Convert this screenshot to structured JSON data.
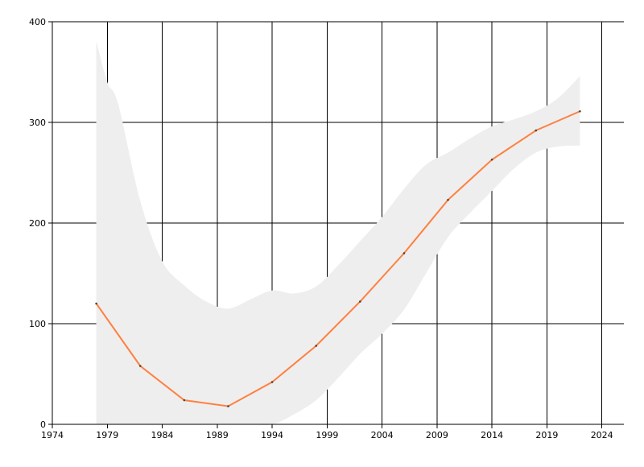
{
  "chart_data": {
    "type": "line",
    "title": "",
    "xlabel": "",
    "ylabel": "",
    "xlim": [
      1974,
      2026
    ],
    "ylim": [
      0,
      400
    ],
    "grid": true,
    "x_ticks": [
      1974,
      1979,
      1984,
      1989,
      1994,
      1999,
      2004,
      2009,
      2014,
      2019,
      2024
    ],
    "y_ticks": [
      0,
      100,
      200,
      300,
      400
    ],
    "colors": {
      "line": "#ff8040",
      "band": "#eeeeee",
      "marker": "#444444",
      "grid": "#000000"
    },
    "series": [
      {
        "x": [
          1978,
          1982,
          1986,
          1990,
          1994,
          1998,
          2002,
          2006,
          2010,
          2014,
          2018,
          2022
        ],
        "values": [
          120,
          58,
          24,
          18,
          42,
          78,
          122,
          170,
          223,
          263,
          292,
          311
        ]
      }
    ],
    "band": {
      "x": [
        1978,
        1979,
        1980,
        1982,
        1984,
        1986,
        1988,
        1990,
        1992,
        1994,
        1996,
        1998,
        2000,
        2002,
        2004,
        2006,
        2008,
        2010,
        2012,
        2014,
        2016,
        2018,
        2020,
        2022
      ],
      "upper": [
        381,
        340,
        318,
        222,
        162,
        138,
        122,
        115,
        124,
        133,
        130,
        137,
        158,
        182,
        206,
        234,
        258,
        270,
        284,
        296,
        303,
        311,
        324,
        346
      ],
      "lower": [
        0,
        0,
        0,
        0,
        0,
        0,
        0,
        0,
        0,
        0,
        10,
        24,
        46,
        70,
        90,
        114,
        150,
        186,
        210,
        232,
        254,
        270,
        276,
        277
      ]
    }
  }
}
